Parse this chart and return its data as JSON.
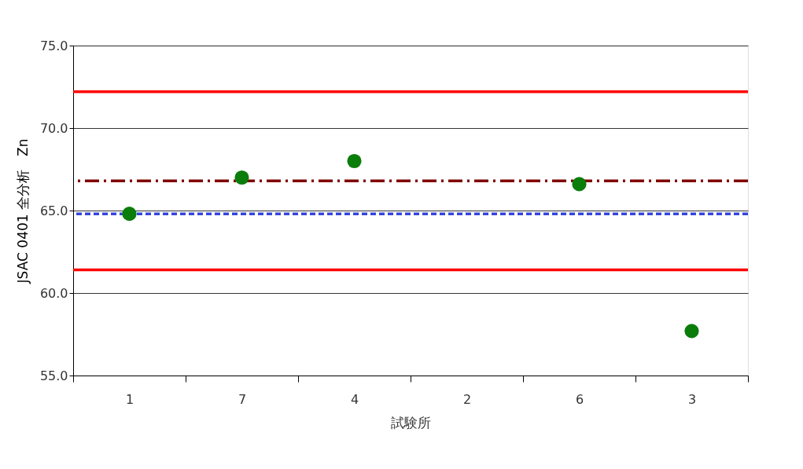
{
  "chart_data": {
    "type": "scatter",
    "xlabel": "試験所",
    "ylabel": "JSAC 0401 全分析　Zn",
    "categories": [
      "1",
      "7",
      "4",
      "2",
      "6",
      "3"
    ],
    "series": [
      {
        "color": "#0a7d0a",
        "values": [
          64.8,
          67.0,
          68.0,
          null,
          66.6,
          57.7
        ]
      }
    ],
    "marker": "circle",
    "ylim": [
      55,
      75
    ],
    "yticks": [
      {
        "value": 55,
        "label": "55.0"
      },
      {
        "value": 60,
        "label": "60.0"
      },
      {
        "value": 65,
        "label": "65.0"
      },
      {
        "value": 70,
        "label": "70.0"
      },
      {
        "value": 75,
        "label": "75.0"
      }
    ],
    "grid": "y",
    "ref_lines": [
      {
        "axis": "y",
        "value": 72.2,
        "color": "#ff0000",
        "line_style": "solid"
      },
      {
        "axis": "y",
        "value": 61.4,
        "color": "#ff0000",
        "line_style": "solid"
      },
      {
        "axis": "y",
        "value": 66.8,
        "color": "#800000",
        "line_style": "dashdot"
      },
      {
        "axis": "y",
        "value": 64.8,
        "color": "#3344dd",
        "line_style": "dashed"
      }
    ]
  }
}
